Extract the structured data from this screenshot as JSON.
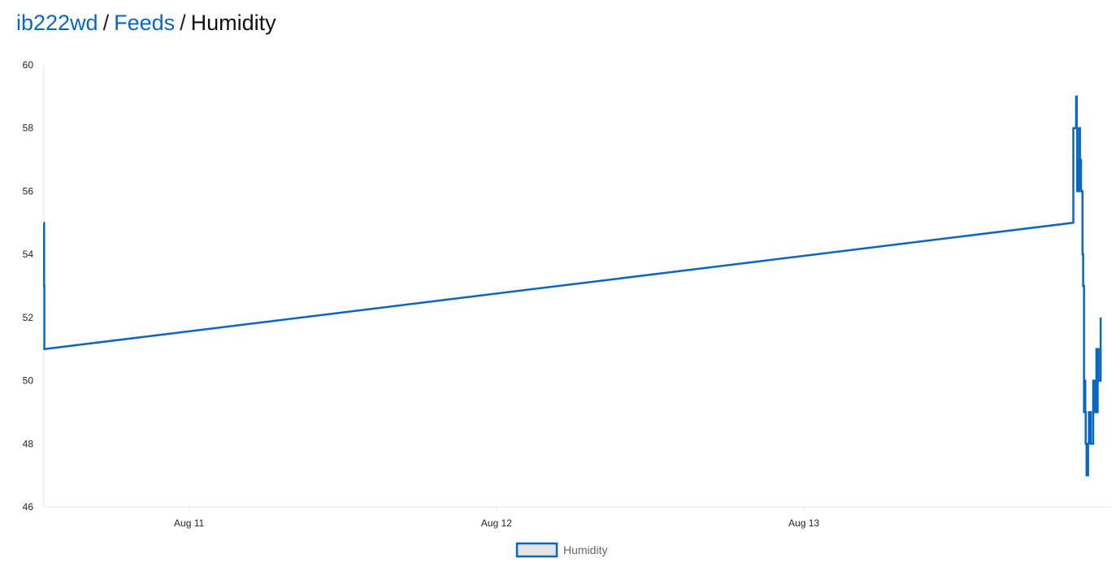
{
  "breadcrumb": {
    "user": "ib222wd",
    "separator": "/",
    "feeds": "Feeds",
    "current": "Humidity"
  },
  "colors": {
    "link": "#0a66c2",
    "series": "#0a66c2",
    "axis": "#e6e6e6",
    "legend_fill": "#e4e4e4"
  },
  "chart_data": {
    "type": "line",
    "title": "",
    "xlabel": "",
    "ylabel": "",
    "ylim": [
      46,
      60
    ],
    "yticks": [
      46,
      48,
      50,
      52,
      54,
      56,
      58,
      60
    ],
    "xlim": [
      "Aug 10 12:40",
      "Aug 13 23:59"
    ],
    "xticks": [
      {
        "at": "Aug 11",
        "label": "Aug 11"
      },
      {
        "at": "Aug 12",
        "label": "Aug 12"
      },
      {
        "at": "Aug 13",
        "label": "Aug 13"
      }
    ],
    "grid": false,
    "legend": {
      "position": "bottom-center"
    },
    "series": [
      {
        "name": "Humidity",
        "step": true,
        "points": [
          [
            "Aug 10 12:40",
            55
          ],
          [
            "Aug 10 12:41",
            53
          ],
          [
            "Aug 10 12:42",
            51
          ],
          [
            "Aug 13 21:00",
            55
          ],
          [
            "Aug 13 21:02",
            58
          ],
          [
            "Aug 13 21:15",
            59
          ],
          [
            "Aug 13 21:18",
            58
          ],
          [
            "Aug 13 21:20",
            56
          ],
          [
            "Aug 13 21:25",
            57
          ],
          [
            "Aug 13 21:28",
            56
          ],
          [
            "Aug 13 21:30",
            58
          ],
          [
            "Aug 13 21:33",
            56
          ],
          [
            "Aug 13 21:36",
            57
          ],
          [
            "Aug 13 21:38",
            56
          ],
          [
            "Aug 13 21:45",
            54
          ],
          [
            "Aug 13 21:48",
            53
          ],
          [
            "Aug 13 21:52",
            49
          ],
          [
            "Aug 13 21:55",
            50
          ],
          [
            "Aug 13 21:58",
            49
          ],
          [
            "Aug 13 22:00",
            48
          ],
          [
            "Aug 13 22:04",
            47
          ],
          [
            "Aug 13 22:07",
            48
          ],
          [
            "Aug 13 22:09",
            47
          ],
          [
            "Aug 13 22:11",
            48
          ],
          [
            "Aug 13 22:15",
            49
          ],
          [
            "Aug 13 22:18",
            48
          ],
          [
            "Aug 13 22:21",
            49
          ],
          [
            "Aug 13 22:24",
            48
          ],
          [
            "Aug 13 22:35",
            50
          ],
          [
            "Aug 13 22:38",
            49
          ],
          [
            "Aug 13 22:42",
            50
          ],
          [
            "Aug 13 22:45",
            49
          ],
          [
            "Aug 13 22:50",
            51
          ],
          [
            "Aug 13 22:53",
            49
          ],
          [
            "Aug 13 22:56",
            51
          ],
          [
            "Aug 13 23:00",
            50
          ],
          [
            "Aug 13 23:10",
            52
          ]
        ]
      }
    ]
  }
}
